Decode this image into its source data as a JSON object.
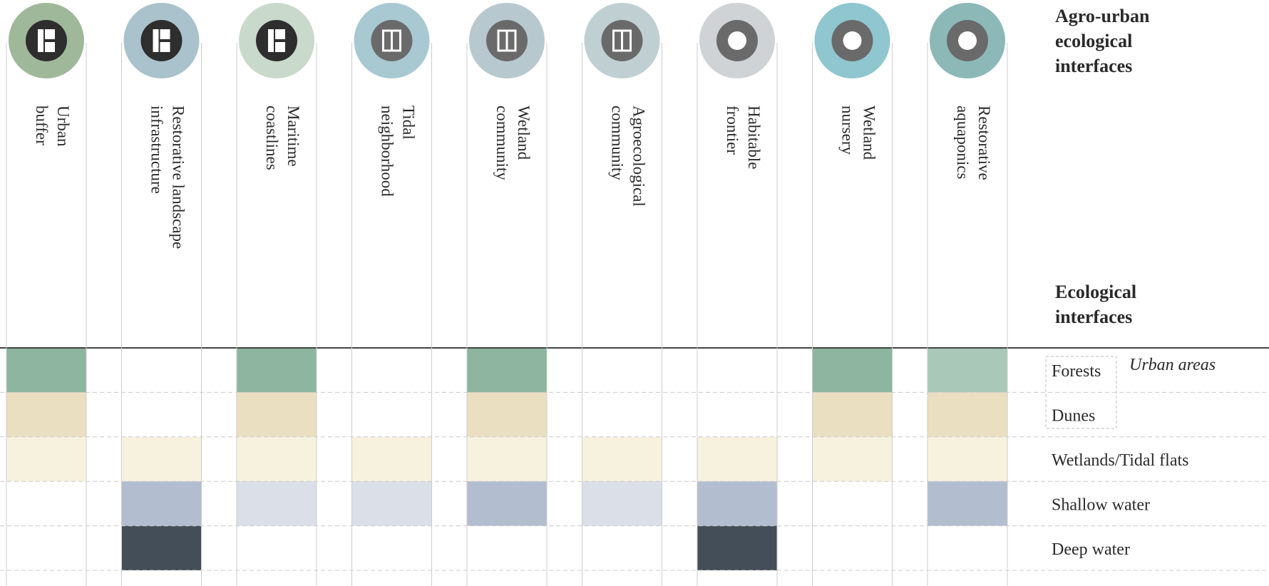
{
  "header": {
    "title": [
      "Agro-urban",
      "ecological",
      "interfaces"
    ],
    "subtitle": [
      "Ecological",
      "interfaces"
    ]
  },
  "legend": "Urban areas",
  "rows": [
    "Forests",
    "Dunes",
    "Wetlands/Tidal flats",
    "Shallow water",
    "Deep water"
  ],
  "columns": [
    {
      "label": [
        "Urban",
        "buffer"
      ],
      "cells": [
        "#8db59f",
        "#ebdfc2",
        "#f7f2de",
        null,
        null
      ]
    },
    {
      "label": [
        "Restorative landscape",
        "infrastructure"
      ],
      "cells": [
        null,
        null,
        "#f7f2de",
        "#b3bdd0",
        "#434e58"
      ]
    },
    {
      "label": [
        "Maritime",
        "coastlines"
      ],
      "cells": [
        "#8db59f",
        "#ebdfc2",
        "#f7f2de",
        "#dadfe8",
        null
      ]
    },
    {
      "label": [
        "Tidal",
        "neighborhood"
      ],
      "cells": [
        null,
        null,
        "#f7f2de",
        "#dadfe8",
        null
      ]
    },
    {
      "label": [
        "Wetland",
        "community"
      ],
      "cells": [
        "#8db59f",
        "#ebdfc2",
        "#f7f2de",
        "#b3bdd0",
        null
      ]
    },
    {
      "label": [
        "Agroecological",
        "community"
      ],
      "cells": [
        null,
        null,
        "#f7f2de",
        "#dadfe8",
        null
      ]
    },
    {
      "label": [
        "Habitable",
        "frontier"
      ],
      "cells": [
        null,
        null,
        "#f7f2de",
        "#b3bdd0",
        "#434e58"
      ]
    },
    {
      "label": [
        "Wetland",
        "nursery"
      ],
      "cells": [
        "#8db59f",
        "#ebdfc2",
        "#f7f2de",
        null,
        null
      ]
    },
    {
      "label": [
        "Restorative",
        "aquaponics"
      ],
      "cells": [
        "#a9c8b8",
        "#ebdfc2",
        "#f7f2de",
        "#b3bdd0",
        null
      ]
    }
  ]
}
